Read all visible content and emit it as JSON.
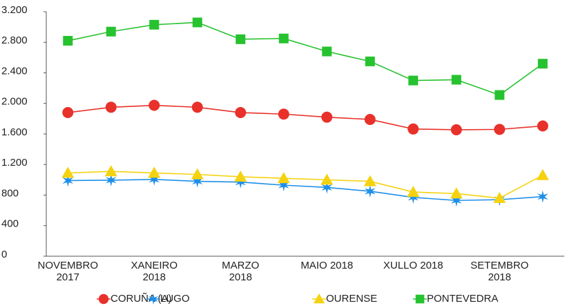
{
  "chart_data": {
    "type": "line",
    "categories": [
      "NOVEMBRO 2017",
      null,
      "XANEIRO 2018",
      null,
      "MARZO 2018",
      null,
      "MAIO 2018",
      null,
      "XULLO 2018",
      null,
      "SETEMBRO 2018",
      null
    ],
    "series": [
      {
        "name": "CORUÑA (A)",
        "color": "#e8312a",
        "marker": "circle",
        "values": [
          1880,
          1950,
          1975,
          1950,
          1880,
          1860,
          1820,
          1790,
          1665,
          1655,
          1660,
          1705
        ]
      },
      {
        "name": "LUGO",
        "color": "#1e8fe8",
        "marker": "star",
        "values": [
          990,
          995,
          1005,
          980,
          970,
          930,
          900,
          850,
          770,
          730,
          740,
          780
        ]
      },
      {
        "name": "OURENSE",
        "color": "#f5d20f",
        "marker": "triangle",
        "values": [
          1090,
          1110,
          1090,
          1070,
          1040,
          1020,
          1000,
          980,
          840,
          820,
          760,
          1060
        ]
      },
      {
        "name": "PONTEVEDRA",
        "color": "#27c22f",
        "marker": "square",
        "values": [
          2820,
          2940,
          3030,
          3060,
          2840,
          2850,
          2680,
          2550,
          2300,
          2310,
          2110,
          2520
        ]
      }
    ],
    "ylim": [
      0,
      3200
    ],
    "yticks": [
      0,
      {
        "value": 400,
        "label": "400"
      },
      {
        "value": 800,
        "label": "800"
      },
      {
        "value": 1200,
        "label": "1.200"
      },
      {
        "value": 1600,
        "label": "1.600"
      },
      {
        "value": 2000,
        "label": "2.000"
      },
      {
        "value": 2400,
        "label": "2.400"
      },
      {
        "value": 2800,
        "label": "2.800"
      },
      {
        "value": 3200,
        "label": "3.200"
      }
    ],
    "grid": false,
    "legend": "bottom"
  }
}
